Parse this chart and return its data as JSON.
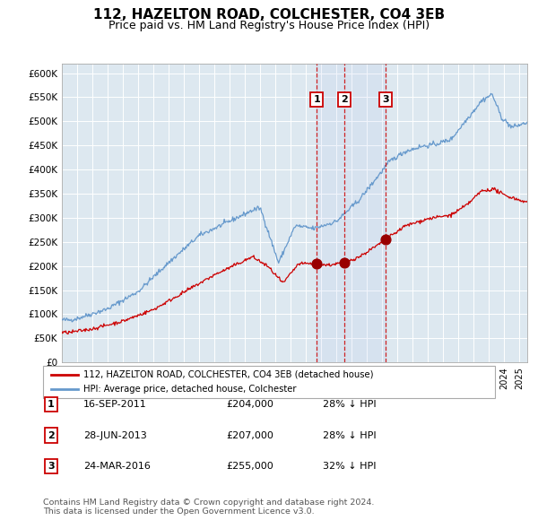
{
  "title": "112, HAZELTON ROAD, COLCHESTER, CO4 3EB",
  "subtitle": "Price paid vs. HM Land Registry's House Price Index (HPI)",
  "title_fontsize": 11,
  "subtitle_fontsize": 9,
  "background_color": "#ffffff",
  "plot_bg_color": "#dde8f0",
  "grid_color": "#ffffff",
  "ylim": [
    0,
    620000
  ],
  "yticks": [
    0,
    50000,
    100000,
    150000,
    200000,
    250000,
    300000,
    350000,
    400000,
    450000,
    500000,
    550000,
    600000
  ],
  "ytick_labels": [
    "£0",
    "£50K",
    "£100K",
    "£150K",
    "£200K",
    "£250K",
    "£300K",
    "£350K",
    "£400K",
    "£450K",
    "£500K",
    "£550K",
    "£600K"
  ],
  "xlim_start": 1995.0,
  "xlim_end": 2025.5,
  "sale_dates": [
    2011.71,
    2013.49,
    2016.23
  ],
  "sale_prices": [
    204000,
    207000,
    255000
  ],
  "sale_labels": [
    "1",
    "2",
    "3"
  ],
  "vline_color": "#cc0000",
  "dot_color": "#990000",
  "dot_size": 60,
  "red_line_color": "#cc0000",
  "blue_line_color": "#6699cc",
  "legend_line1": "112, HAZELTON ROAD, COLCHESTER, CO4 3EB (detached house)",
  "legend_line2": "HPI: Average price, detached house, Colchester",
  "table_data": [
    [
      "1",
      "16-SEP-2011",
      "£204,000",
      "28% ↓ HPI"
    ],
    [
      "2",
      "28-JUN-2013",
      "£207,000",
      "28% ↓ HPI"
    ],
    [
      "3",
      "24-MAR-2016",
      "£255,000",
      "32% ↓ HPI"
    ]
  ],
  "footnote": "Contains HM Land Registry data © Crown copyright and database right 2024.\nThis data is licensed under the Open Government Licence v3.0.",
  "shade_start": 2011.71,
  "shade_end": 2016.23
}
